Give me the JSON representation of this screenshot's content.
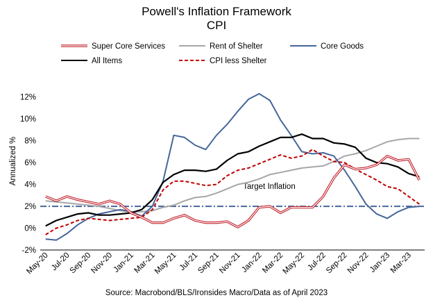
{
  "chart_data": {
    "type": "line",
    "title": "Powell's Inflation Framework",
    "subtitle": "CPI",
    "ylabel": "Annualized %",
    "xlabel": "",
    "source": "Source: Macrobond/BLS/Ironsides Macro/Data as of April 2023",
    "ylim": [
      -2,
      13
    ],
    "yticks": [
      -2,
      0,
      2,
      4,
      6,
      8,
      10,
      12
    ],
    "ytick_suffix": "%",
    "grid": false,
    "legend_position": "top",
    "x": [
      "2020-05",
      "2020-06",
      "2020-07",
      "2020-08",
      "2020-09",
      "2020-10",
      "2020-11",
      "2020-12",
      "2021-01",
      "2021-02",
      "2021-03",
      "2021-04",
      "2021-05",
      "2021-06",
      "2021-07",
      "2021-08",
      "2021-09",
      "2021-10",
      "2021-11",
      "2021-12",
      "2022-01",
      "2022-02",
      "2022-03",
      "2022-04",
      "2022-05",
      "2022-06",
      "2022-07",
      "2022-08",
      "2022-09",
      "2022-10",
      "2022-11",
      "2022-12",
      "2023-01",
      "2023-02",
      "2023-03",
      "2023-04"
    ],
    "x_tick_labels": [
      "May-20",
      "Jul-20",
      "Sep-20",
      "Nov-20",
      "Jan-21",
      "Mar-21",
      "May-21",
      "Jul-21",
      "Sep-21",
      "Nov-21",
      "Jan-22",
      "Mar-22",
      "May-22",
      "Jul-22",
      "Sep-22",
      "Nov-22",
      "Jan-23",
      "Mar-23"
    ],
    "series": [
      {
        "name": "Super Core Services",
        "color": "#c0202a",
        "style": "double",
        "values": [
          2.9,
          2.5,
          2.9,
          2.6,
          2.4,
          2.2,
          2.5,
          2.2,
          1.4,
          1.0,
          0.5,
          0.5,
          0.9,
          1.2,
          0.7,
          0.5,
          0.5,
          0.6,
          0.1,
          0.7,
          1.9,
          2.0,
          1.4,
          1.9,
          1.9,
          1.9,
          2.9,
          4.6,
          5.8,
          5.4,
          5.5,
          5.8,
          6.6,
          6.2,
          6.3,
          4.4
        ]
      },
      {
        "name": "Rent of Shelter",
        "color": "#a6a6a6",
        "style": "solid",
        "values": [
          2.5,
          2.4,
          2.3,
          2.2,
          2.1,
          2.0,
          1.8,
          1.6,
          1.5,
          1.5,
          1.6,
          1.9,
          2.1,
          2.5,
          2.8,
          2.9,
          3.2,
          3.6,
          4.0,
          4.2,
          4.5,
          4.9,
          5.1,
          5.3,
          5.5,
          5.6,
          5.7,
          6.1,
          6.6,
          6.8,
          7.1,
          7.5,
          7.9,
          8.1,
          8.2,
          8.2
        ]
      },
      {
        "name": "Core Goods",
        "color": "#44659a",
        "style": "solid",
        "values": [
          -1.0,
          -1.1,
          -0.5,
          0.3,
          0.9,
          1.3,
          1.5,
          1.7,
          1.5,
          1.1,
          2.0,
          4.3,
          8.5,
          8.3,
          7.6,
          7.2,
          8.5,
          9.5,
          10.7,
          11.8,
          12.3,
          11.7,
          9.9,
          8.5,
          7.0,
          6.8,
          6.9,
          6.6,
          5.3,
          3.8,
          2.2,
          1.3,
          0.9,
          1.5,
          1.9,
          2.0
        ]
      },
      {
        "name": "All Items",
        "color": "#000000",
        "style": "solid",
        "values": [
          0.2,
          0.7,
          1.0,
          1.3,
          1.4,
          1.2,
          1.2,
          1.3,
          1.4,
          1.7,
          2.6,
          4.2,
          4.9,
          5.3,
          5.3,
          5.2,
          5.4,
          6.2,
          6.8,
          7.0,
          7.5,
          7.9,
          8.3,
          8.3,
          8.6,
          8.2,
          8.2,
          7.8,
          7.7,
          7.4,
          6.4,
          6.0,
          5.9,
          5.6,
          5.0,
          4.7
        ]
      },
      {
        "name": "CPI less Shelter",
        "color": "#c00000",
        "style": "dashed",
        "values": [
          -0.6,
          0.0,
          0.3,
          0.7,
          0.9,
          0.8,
          0.7,
          0.8,
          0.9,
          1.0,
          1.7,
          3.5,
          4.3,
          4.3,
          4.1,
          3.9,
          4.0,
          4.8,
          5.3,
          5.5,
          5.9,
          6.3,
          6.7,
          6.4,
          6.6,
          7.2,
          6.6,
          6.1,
          6.0,
          5.4,
          4.9,
          4.4,
          3.8,
          3.6,
          2.9,
          2.2
        ]
      }
    ],
    "reference_line": {
      "label": "Target Inflation",
      "value": 2,
      "color": "#44659a",
      "style": "dashdot"
    }
  }
}
